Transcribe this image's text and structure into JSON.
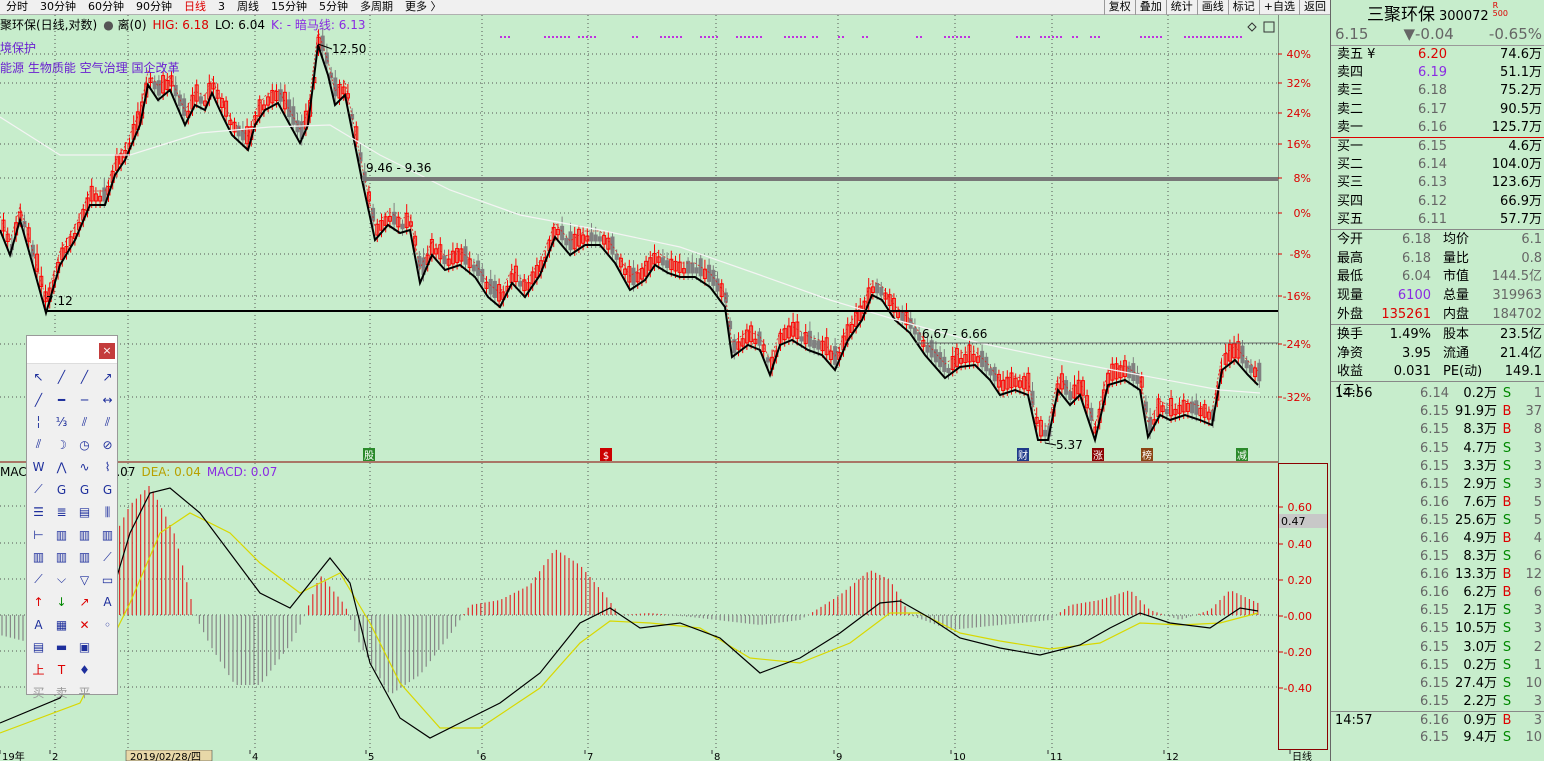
{
  "period_bar": {
    "periods": [
      "分时",
      "30分钟",
      "60分钟",
      "90分钟",
      "日线",
      "3",
      "周线",
      "15分钟",
      "5分钟",
      "多周期",
      "更多 〉"
    ],
    "active": "日线",
    "tools": [
      "复权",
      "叠加",
      "统计",
      "画线",
      "标记",
      "+自选",
      "返回"
    ]
  },
  "main_info": {
    "name": "聚环保(日线,对数)",
    "li_label": "离(0)",
    "hig": "HIG: 6.18",
    "lo": "LO: 6.04",
    "k_label": "K: - 暗马线: 6.13"
  },
  "concepts": {
    "line1": "境保护",
    "line2": "能源 生物质能 空气治理 国企改革"
  },
  "annotations": {
    "high": "12.50",
    "zone1": "9.46 - 9.36",
    "zone2": "6.67 - 6.66",
    "low_left": "7.12",
    "low": "5.37"
  },
  "right_axis": [
    "40%",
    "32%",
    "24%",
    "16%",
    "8%",
    "0%",
    "-8%",
    "-16%",
    "-24%",
    "-32%"
  ],
  "event_markers": [
    "股",
    "$",
    "财",
    "涨",
    "榜",
    "减"
  ],
  "macd_info": {
    "label": "MAC",
    "dif_value": "0.07",
    "dea": "DEA: 0.04",
    "macd": "MACD: 0.07"
  },
  "macd_axis": [
    "0.60",
    "0.40",
    "0.20",
    "-0.00",
    "-0.20",
    "-0.40"
  ],
  "macd_current": "0.47",
  "date_axis": [
    "19年",
    "2",
    "2019/02/28/四",
    "4",
    "5",
    "6",
    "7",
    "8",
    "9",
    "10",
    "11",
    "12",
    "日线"
  ],
  "toolbox": {
    "close": "×",
    "bottom": [
      "买",
      "卖",
      "平"
    ]
  },
  "quote": {
    "name": "三聚环保",
    "code": "300072",
    "badge_r": "R",
    "badge_500": "500",
    "price": "6.15",
    "change": "▼-0.04",
    "change_pct": "-0.65%",
    "asks": [
      {
        "label": "卖五 ¥",
        "price": "6.20",
        "vol": "74.6万"
      },
      {
        "label": "卖四",
        "price": "6.19",
        "vol": "51.1万"
      },
      {
        "label": "卖三",
        "price": "6.18",
        "vol": "75.2万"
      },
      {
        "label": "卖二",
        "price": "6.17",
        "vol": "90.5万"
      },
      {
        "label": "卖一",
        "price": "6.16",
        "vol": "125.7万"
      }
    ],
    "bids": [
      {
        "label": "买一",
        "price": "6.15",
        "vol": "4.6万"
      },
      {
        "label": "买二",
        "price": "6.14",
        "vol": "104.0万"
      },
      {
        "label": "买三",
        "price": "6.13",
        "vol": "123.6万"
      },
      {
        "label": "买四",
        "price": "6.12",
        "vol": "66.9万"
      },
      {
        "label": "买五",
        "price": "6.11",
        "vol": "57.7万"
      }
    ],
    "stats": [
      {
        "k1": "今开",
        "v1": "6.18",
        "k2": "均价",
        "v2": "6.1"
      },
      {
        "k1": "最高",
        "v1": "6.18",
        "k2": "量比",
        "v2": "0.8"
      },
      {
        "k1": "最低",
        "v1": "6.04",
        "k2": "市值",
        "v2": "144.5亿"
      },
      {
        "k1": "现量",
        "v1": "6100",
        "k2": "总量",
        "v2": "319963"
      },
      {
        "k1": "外盘",
        "v1": "135261",
        "k2": "内盘",
        "v2": "184702"
      }
    ],
    "stats2": [
      {
        "k1": "换手",
        "v1": "1.49%",
        "k2": "股本",
        "v2": "23.5亿"
      },
      {
        "k1": "净资",
        "v1": "3.95",
        "k2": "流通",
        "v2": "21.4亿"
      },
      {
        "k1": "收益(三)",
        "v1": "0.031",
        "k2": "PE(动)",
        "v2": "149.1"
      }
    ],
    "ticks": [
      {
        "t": "14:56",
        "p": "6.14",
        "v": "0.2万",
        "bs": "S",
        "n": "1"
      },
      {
        "t": "",
        "p": "6.15",
        "v": "91.9万",
        "bs": "B",
        "n": "37"
      },
      {
        "t": "",
        "p": "6.15",
        "v": "8.3万",
        "bs": "B",
        "n": "8"
      },
      {
        "t": "",
        "p": "6.15",
        "v": "4.7万",
        "bs": "S",
        "n": "3"
      },
      {
        "t": "",
        "p": "6.15",
        "v": "3.3万",
        "bs": "S",
        "n": "3"
      },
      {
        "t": "",
        "p": "6.15",
        "v": "2.9万",
        "bs": "S",
        "n": "3"
      },
      {
        "t": "",
        "p": "6.16",
        "v": "7.6万",
        "bs": "B",
        "n": "5"
      },
      {
        "t": "",
        "p": "6.15",
        "v": "25.6万",
        "bs": "S",
        "n": "5"
      },
      {
        "t": "",
        "p": "6.16",
        "v": "4.9万",
        "bs": "B",
        "n": "4"
      },
      {
        "t": "",
        "p": "6.15",
        "v": "8.3万",
        "bs": "S",
        "n": "6"
      },
      {
        "t": "",
        "p": "6.16",
        "v": "13.3万",
        "bs": "B",
        "n": "12"
      },
      {
        "t": "",
        "p": "6.16",
        "v": "6.2万",
        "bs": "B",
        "n": "6"
      },
      {
        "t": "",
        "p": "6.15",
        "v": "2.1万",
        "bs": "S",
        "n": "3"
      },
      {
        "t": "",
        "p": "6.15",
        "v": "10.5万",
        "bs": "S",
        "n": "3"
      },
      {
        "t": "",
        "p": "6.15",
        "v": "3.0万",
        "bs": "S",
        "n": "2"
      },
      {
        "t": "",
        "p": "6.15",
        "v": "0.2万",
        "bs": "S",
        "n": "1"
      },
      {
        "t": "",
        "p": "6.15",
        "v": "27.4万",
        "bs": "S",
        "n": "10"
      },
      {
        "t": "",
        "p": "6.15",
        "v": "2.2万",
        "bs": "S",
        "n": "3"
      },
      {
        "t": "14:57",
        "p": "6.16",
        "v": "0.9万",
        "bs": "B",
        "n": "3"
      },
      {
        "t": "",
        "p": "6.15",
        "v": "9.4万",
        "bs": "S",
        "n": "10"
      }
    ]
  },
  "colors": {
    "bg": "#c7edcc",
    "up": "#ff0000",
    "down": "#808080",
    "ma_line": "#000000",
    "dea_line": "#e0e000",
    "purple": "#8a2be2"
  }
}
